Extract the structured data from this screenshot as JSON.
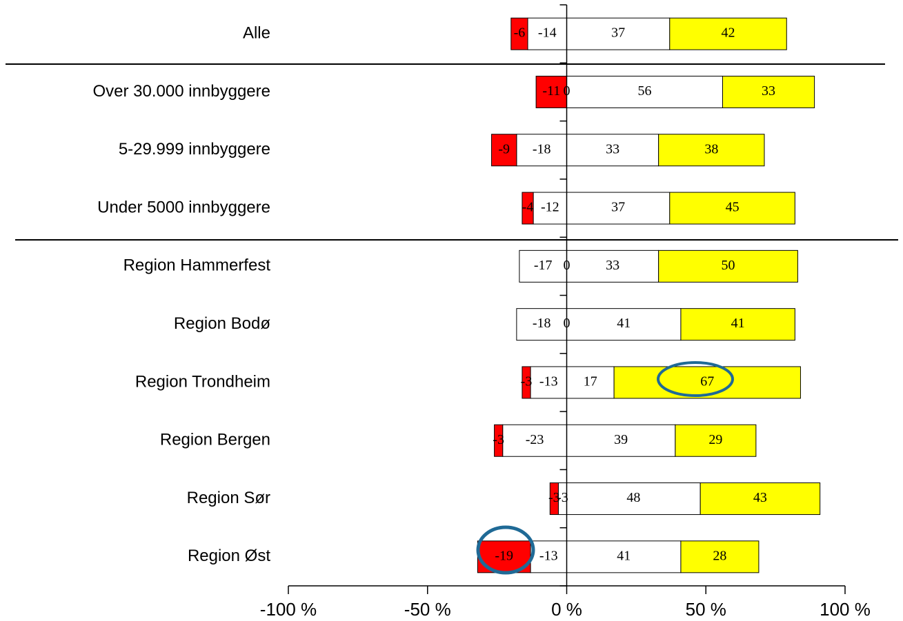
{
  "chart_data": {
    "type": "diverging-stacked-bar",
    "categories": [
      "Alle",
      "Over 30.000 innbyggere",
      "5-29.999 innbyggere",
      "Under 5000 innbyggere",
      "Region Hammerfest",
      "Region Bodø",
      "Region Trondheim",
      "Region Bergen",
      "Region Sør",
      "Region Øst"
    ],
    "series": [
      {
        "color": "#ffffff",
        "values": [
          -14,
          0,
          -18,
          -12,
          -17,
          -18,
          -13,
          -23,
          -3,
          -13
        ]
      },
      {
        "color": "#ff0000",
        "values": [
          -6,
          -11,
          -9,
          -4,
          0,
          0,
          -3,
          -3,
          -3,
          -19
        ]
      },
      {
        "color": "#ffffff",
        "values": [
          37,
          56,
          33,
          37,
          33,
          41,
          17,
          39,
          48,
          41
        ]
      },
      {
        "color": "#ffff00",
        "values": [
          42,
          33,
          38,
          45,
          50,
          41,
          67,
          29,
          43,
          28
        ]
      }
    ],
    "xlim": [
      -100,
      100
    ],
    "xticks": [
      {
        "value": -100,
        "label": "-100 %"
      },
      {
        "value": -50,
        "label": "-50 %"
      },
      {
        "value": 0,
        "label": "0 %"
      },
      {
        "value": 50,
        "label": "50 %"
      },
      {
        "value": 100,
        "label": "100 %"
      }
    ]
  }
}
